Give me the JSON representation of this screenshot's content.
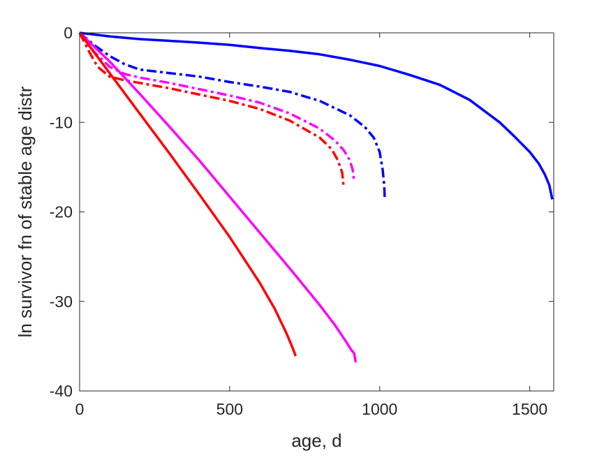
{
  "chart_data": {
    "type": "line",
    "title": "",
    "xlabel": "age, d",
    "ylabel": "ln survivor fn of stable age distr",
    "xlim": [
      0,
      1580
    ],
    "ylim": [
      -40,
      0
    ],
    "xticks": [
      0,
      500,
      1000,
      1500
    ],
    "yticks": [
      0,
      -10,
      -20,
      -30,
      -40
    ],
    "xtick_labels": [
      "0",
      "500",
      "1000",
      "1500"
    ],
    "ytick_labels": [
      "0",
      "-10",
      "-20",
      "-30",
      "-40"
    ],
    "grid": false,
    "legend": "none",
    "series": [
      {
        "color": "#0000FF",
        "dash": "solid",
        "x": [
          0,
          100,
          200,
          300,
          400,
          500,
          600,
          700,
          800,
          900,
          1000,
          1100,
          1200,
          1300,
          1400,
          1450,
          1500,
          1530,
          1550,
          1565,
          1575
        ],
        "y": [
          0,
          -0.4,
          -0.7,
          -0.9,
          -1.1,
          -1.35,
          -1.7,
          -2.0,
          -2.4,
          -3.0,
          -3.7,
          -4.7,
          -5.8,
          -7.5,
          -10.0,
          -11.6,
          -13.3,
          -14.6,
          -15.8,
          -17.0,
          -18.6
        ]
      },
      {
        "color": "#0000FF",
        "dash": "dashdot",
        "x": [
          0,
          50,
          100,
          150,
          200,
          300,
          400,
          500,
          600,
          700,
          800,
          900,
          950,
          980,
          1000,
          1010,
          1015,
          1017
        ],
        "y": [
          0,
          -1.4,
          -2.6,
          -3.5,
          -4.1,
          -4.5,
          -4.9,
          -5.5,
          -6.0,
          -6.6,
          -7.6,
          -9.2,
          -10.5,
          -11.7,
          -13.3,
          -15.3,
          -17.0,
          -18.7
        ]
      },
      {
        "color": "#FF00FF",
        "dash": "dashdot",
        "x": [
          0,
          50,
          100,
          150,
          200,
          300,
          400,
          500,
          600,
          700,
          800,
          850,
          880,
          900,
          910,
          915
        ],
        "y": [
          0,
          -2.2,
          -3.8,
          -4.6,
          -5.0,
          -5.6,
          -6.3,
          -7.0,
          -7.8,
          -9.0,
          -10.7,
          -12.0,
          -13.1,
          -14.2,
          -15.3,
          -16.6
        ]
      },
      {
        "color": "#FF0000",
        "dash": "dashdot",
        "x": [
          0,
          30,
          60,
          100,
          150,
          200,
          300,
          400,
          500,
          600,
          700,
          800,
          840,
          860,
          875,
          880
        ],
        "y": [
          0,
          -2.0,
          -3.8,
          -4.9,
          -5.3,
          -5.6,
          -6.2,
          -6.9,
          -7.6,
          -8.5,
          -9.8,
          -11.7,
          -13.0,
          -14.2,
          -15.6,
          -17.3
        ]
      },
      {
        "color": "#FF00FF",
        "dash": "solid",
        "x": [
          0,
          100,
          200,
          300,
          400,
          500,
          600,
          700,
          800,
          850,
          890,
          905,
          915,
          920
        ],
        "y": [
          0,
          -3.2,
          -6.8,
          -10.5,
          -14.3,
          -18.3,
          -22.3,
          -26.3,
          -30.4,
          -32.6,
          -34.6,
          -35.4,
          -35.8,
          -36.8
        ]
      },
      {
        "color": "#FF0000",
        "dash": "solid",
        "x": [
          0,
          100,
          200,
          300,
          400,
          500,
          600,
          650,
          690,
          710,
          720
        ],
        "y": [
          0,
          -4.5,
          -9.0,
          -13.5,
          -18.1,
          -22.8,
          -27.9,
          -30.8,
          -33.6,
          -35.2,
          -36.1
        ]
      }
    ]
  }
}
